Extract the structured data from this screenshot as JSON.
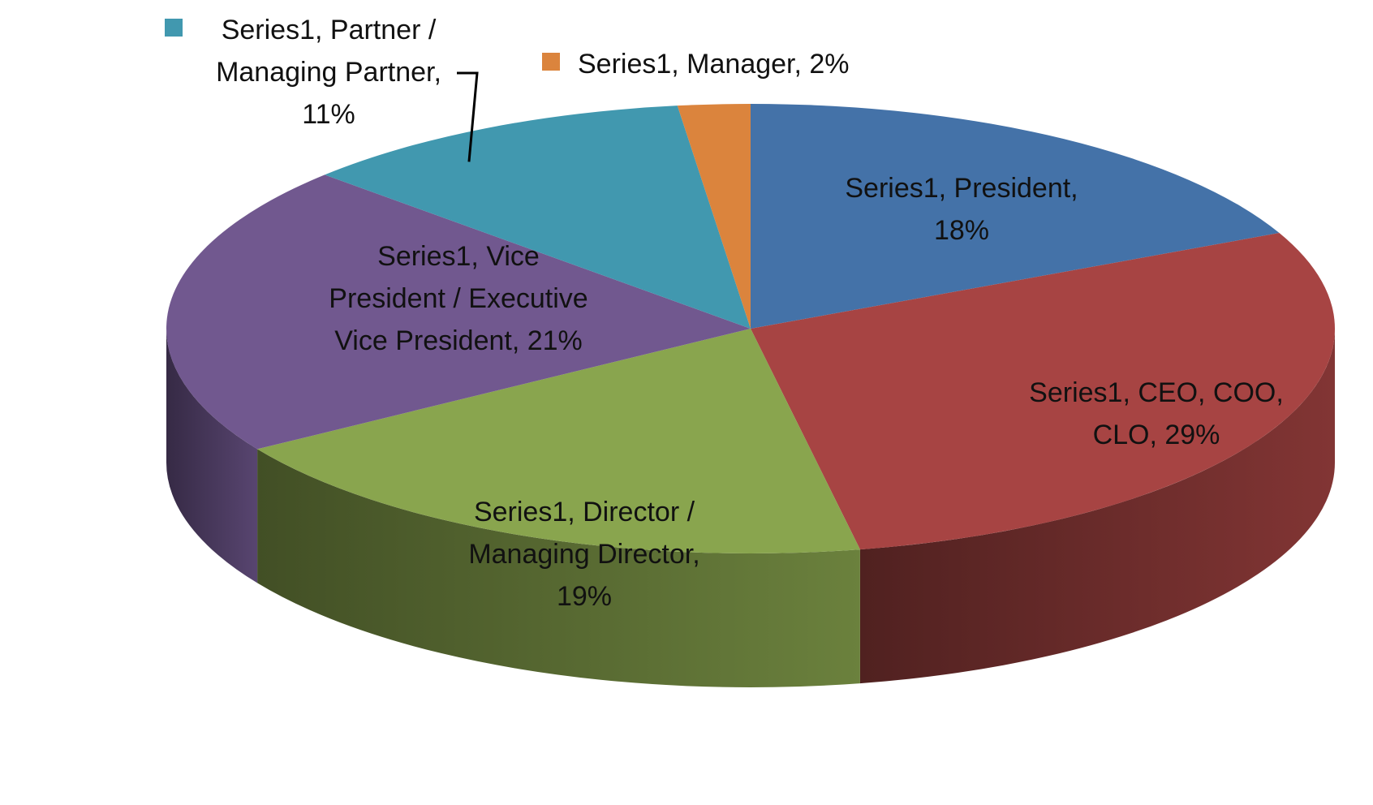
{
  "chart_data": {
    "type": "pie",
    "style": "3d-tilted",
    "series": [
      {
        "name": "Series1",
        "slices": [
          {
            "category": "President",
            "value": 18,
            "color": "#4472A8",
            "label_lines": [
              "Series1, President,",
              "18%"
            ]
          },
          {
            "category": "CEO, COO, CLO",
            "value": 29,
            "color": "#A74443",
            "label_lines": [
              "Series1, CEO, COO,",
              "CLO, 29%"
            ]
          },
          {
            "category": "Director / Managing Director",
            "value": 19,
            "color": "#89A54E",
            "label_lines": [
              "Series1, Director /",
              "Managing Director,",
              "19%"
            ]
          },
          {
            "category": "Vice President / Executive Vice President",
            "value": 21,
            "color": "#71588F",
            "label_lines": [
              "Series1, Vice",
              "President / Executive",
              "Vice President,  21%"
            ]
          },
          {
            "category": "Partner / Managing Partner",
            "value": 11,
            "color": "#4198AF",
            "label_lines": [
              "Series1, Partner /",
              "Managing Partner,",
              "11%"
            ]
          },
          {
            "category": "Manager",
            "value": 2,
            "color": "#DB843D",
            "label_lines": [
              "Series1, Manager, 2%"
            ]
          }
        ]
      }
    ]
  }
}
